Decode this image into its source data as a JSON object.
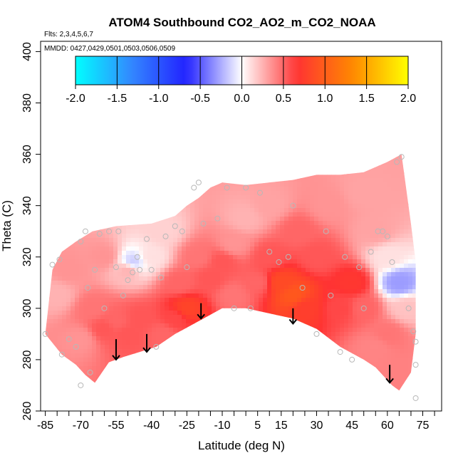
{
  "chart_data": {
    "type": "heatmap",
    "title": "ATOM4 Southbound CO2_AO2_m_CO2_NOAA",
    "flights_note": "Flts: 2,3,4,5,6,7",
    "mmdd_note": "MMDD: 0427,0429,0501,0503,0506,0509",
    "xlabel": "Latitude (deg N)",
    "ylabel": "Theta (C)",
    "xlim": [
      -87,
      83
    ],
    "ylim": [
      260,
      404
    ],
    "x_ticks": [
      -85,
      -70,
      -55,
      -40,
      -25,
      -10,
      5,
      15,
      30,
      45,
      60,
      75
    ],
    "x_ticks_labels": [
      "-85",
      "-70",
      "-55",
      "-40",
      "-25",
      "-10",
      "5",
      "15",
      "30",
      "45",
      "60",
      "75"
    ],
    "x_minor_ticks": [
      -80,
      -75,
      -65,
      -60,
      -50,
      -45,
      -35,
      -30,
      -20,
      -15,
      -5,
      0,
      10,
      20,
      25,
      35,
      40,
      50,
      55,
      65,
      70,
      80
    ],
    "y_ticks": [
      260,
      280,
      300,
      320,
      340,
      360,
      380,
      400
    ],
    "y_ticks_labels": [
      "260",
      "280",
      "300",
      "320",
      "340",
      "360",
      "380",
      "400"
    ],
    "colorbar": {
      "range": [
        -2.0,
        2.0
      ],
      "ticks": [
        -2.0,
        -1.5,
        -1.0,
        -0.5,
        0.0,
        0.5,
        1.0,
        1.5,
        2.0
      ],
      "tick_labels": [
        "-2.0",
        "-1.5",
        "-1.0",
        "-0.5",
        "0.0",
        "0.5",
        "1.0",
        "1.5",
        "2.0"
      ],
      "colors": [
        "#00ffff",
        "#3388ff",
        "#2222ff",
        "#ffffff",
        "#ff3333",
        "#ff8800",
        "#ffff00"
      ]
    },
    "upper_boundary": [
      [
        -85,
        290
      ],
      [
        -82,
        315
      ],
      [
        -78,
        322
      ],
      [
        -72,
        326
      ],
      [
        -65,
        330
      ],
      [
        -55,
        332
      ],
      [
        -40,
        333
      ],
      [
        -30,
        336
      ],
      [
        -25,
        340
      ],
      [
        -20,
        343
      ],
      [
        -15,
        347
      ],
      [
        -10,
        349
      ],
      [
        0,
        348
      ],
      [
        10,
        349
      ],
      [
        20,
        350
      ],
      [
        30,
        352
      ],
      [
        40,
        352
      ],
      [
        50,
        353
      ],
      [
        60,
        357
      ],
      [
        66,
        360
      ],
      [
        70,
        333
      ],
      [
        72,
        318
      ],
      [
        72,
        290
      ],
      [
        70,
        275
      ],
      [
        65,
        268
      ],
      [
        62,
        270
      ]
    ],
    "lower_boundary": [
      [
        -85,
        290
      ],
      [
        -78,
        282
      ],
      [
        -72,
        278
      ],
      [
        -68,
        274
      ],
      [
        -64,
        271
      ],
      [
        -58,
        279
      ],
      [
        -52,
        281
      ],
      [
        -45,
        283
      ],
      [
        -38,
        285
      ],
      [
        -30,
        290
      ],
      [
        -20,
        295
      ],
      [
        -10,
        300
      ],
      [
        0,
        300
      ],
      [
        10,
        298
      ],
      [
        20,
        296
      ],
      [
        30,
        292
      ],
      [
        40,
        285
      ],
      [
        50,
        280
      ],
      [
        55,
        277
      ],
      [
        62,
        270
      ]
    ],
    "anomaly_samples": [
      {
        "lat": -70,
        "theta": 288,
        "value": 0.35
      },
      {
        "lat": -65,
        "theta": 300,
        "value": 0.45
      },
      {
        "lat": -60,
        "theta": 292,
        "value": 0.55
      },
      {
        "lat": -55,
        "theta": 295,
        "value": 0.5
      },
      {
        "lat": -50,
        "theta": 290,
        "value": 0.55
      },
      {
        "lat": -45,
        "theta": 296,
        "value": 0.55
      },
      {
        "lat": -35,
        "theta": 290,
        "value": 0.5
      },
      {
        "lat": -30,
        "theta": 296,
        "value": 0.6
      },
      {
        "lat": -28,
        "theta": 310,
        "value": 0.5
      },
      {
        "lat": -20,
        "theta": 320,
        "value": 0.45
      },
      {
        "lat": -15,
        "theta": 312,
        "value": 0.55
      },
      {
        "lat": -10,
        "theta": 318,
        "value": 0.55
      },
      {
        "lat": -5,
        "theta": 325,
        "value": 0.35
      },
      {
        "lat": 0,
        "theta": 335,
        "value": 0.25
      },
      {
        "lat": 10,
        "theta": 320,
        "value": 0.55
      },
      {
        "lat": 15,
        "theta": 310,
        "value": 0.85
      },
      {
        "lat": 20,
        "theta": 305,
        "value": 0.95
      },
      {
        "lat": 22,
        "theta": 330,
        "value": 0.5
      },
      {
        "lat": 25,
        "theta": 300,
        "value": 0.75
      },
      {
        "lat": 30,
        "theta": 320,
        "value": 0.55
      },
      {
        "lat": 35,
        "theta": 340,
        "value": 0.35
      },
      {
        "lat": 40,
        "theta": 300,
        "value": 0.6
      },
      {
        "lat": 45,
        "theta": 310,
        "value": 0.7
      },
      {
        "lat": 50,
        "theta": 300,
        "value": 0.5
      },
      {
        "lat": 55,
        "theta": 330,
        "value": 0.3
      },
      {
        "lat": 60,
        "theta": 320,
        "value": 0.1
      },
      {
        "lat": 65,
        "theta": 310,
        "value": -0.3
      },
      {
        "lat": 68,
        "theta": 300,
        "value": 0.2
      },
      {
        "lat": -80,
        "theta": 305,
        "value": 0.25
      },
      {
        "lat": -75,
        "theta": 315,
        "value": 0.35
      },
      {
        "lat": -40,
        "theta": 320,
        "value": 0.1
      },
      {
        "lat": -50,
        "theta": 315,
        "value": 0.25
      },
      {
        "lat": -48,
        "theta": 318,
        "value": -0.15
      },
      {
        "lat": -60,
        "theta": 320,
        "value": 0.35
      },
      {
        "lat": -35,
        "theta": 330,
        "value": 0.15
      },
      {
        "lat": -25,
        "theta": 300,
        "value": 0.8
      },
      {
        "lat": 5,
        "theta": 310,
        "value": 0.5
      },
      {
        "lat": -5,
        "theta": 305,
        "value": 0.45
      },
      {
        "lat": 10,
        "theta": 340,
        "value": 0.3
      },
      {
        "lat": 50,
        "theta": 345,
        "value": 0.3
      },
      {
        "lat": 60,
        "theta": 290,
        "value": 0.45
      },
      {
        "lat": 55,
        "theta": 285,
        "value": 0.4
      }
    ],
    "sample_points": [
      [
        -85,
        290
      ],
      [
        -82,
        317
      ],
      [
        -79,
        319
      ],
      [
        -78,
        282
      ],
      [
        -75,
        288
      ],
      [
        -72,
        285
      ],
      [
        -70,
        326
      ],
      [
        -70,
        270
      ],
      [
        -68,
        330
      ],
      [
        -67,
        308
      ],
      [
        -66,
        275
      ],
      [
        -64,
        315
      ],
      [
        -62,
        329
      ],
      [
        -60,
        300
      ],
      [
        -58,
        330
      ],
      [
        -55,
        316
      ],
      [
        -54,
        330
      ],
      [
        -52,
        305
      ],
      [
        -50,
        311
      ],
      [
        -48,
        314
      ],
      [
        -46,
        320
      ],
      [
        -45,
        315
      ],
      [
        -42,
        327
      ],
      [
        -40,
        315
      ],
      [
        -38,
        285
      ],
      [
        -36,
        312
      ],
      [
        -34,
        328
      ],
      [
        -30,
        332
      ],
      [
        -27,
        330
      ],
      [
        -25,
        316
      ],
      [
        -22,
        347
      ],
      [
        -20,
        349
      ],
      [
        -18,
        333
      ],
      [
        -12,
        335
      ],
      [
        -8,
        347
      ],
      [
        -5,
        300
      ],
      [
        0,
        347
      ],
      [
        2,
        300
      ],
      [
        6,
        345
      ],
      [
        10,
        322
      ],
      [
        14,
        318
      ],
      [
        18,
        320
      ],
      [
        20,
        340
      ],
      [
        24,
        308
      ],
      [
        30,
        290
      ],
      [
        34,
        330
      ],
      [
        36,
        305
      ],
      [
        40,
        283
      ],
      [
        42,
        320
      ],
      [
        45,
        280
      ],
      [
        48,
        316
      ],
      [
        50,
        300
      ],
      [
        53,
        322
      ],
      [
        56,
        330
      ],
      [
        58,
        330
      ],
      [
        60,
        328
      ],
      [
        62,
        318
      ],
      [
        64,
        357
      ],
      [
        66,
        359
      ],
      [
        69,
        300
      ],
      [
        71,
        291
      ],
      [
        72,
        287
      ],
      [
        72,
        278
      ],
      [
        72,
        265
      ]
    ],
    "arrows": [
      {
        "lat": -55,
        "theta_top": 288,
        "theta_bottom": 280
      },
      {
        "lat": -42,
        "theta_top": 290,
        "theta_bottom": 283
      },
      {
        "lat": -19,
        "theta_top": 302,
        "theta_bottom": 296
      },
      {
        "lat": 20,
        "theta_top": 300,
        "theta_bottom": 294
      },
      {
        "lat": 61,
        "theta_top": 278,
        "theta_bottom": 271
      }
    ]
  }
}
